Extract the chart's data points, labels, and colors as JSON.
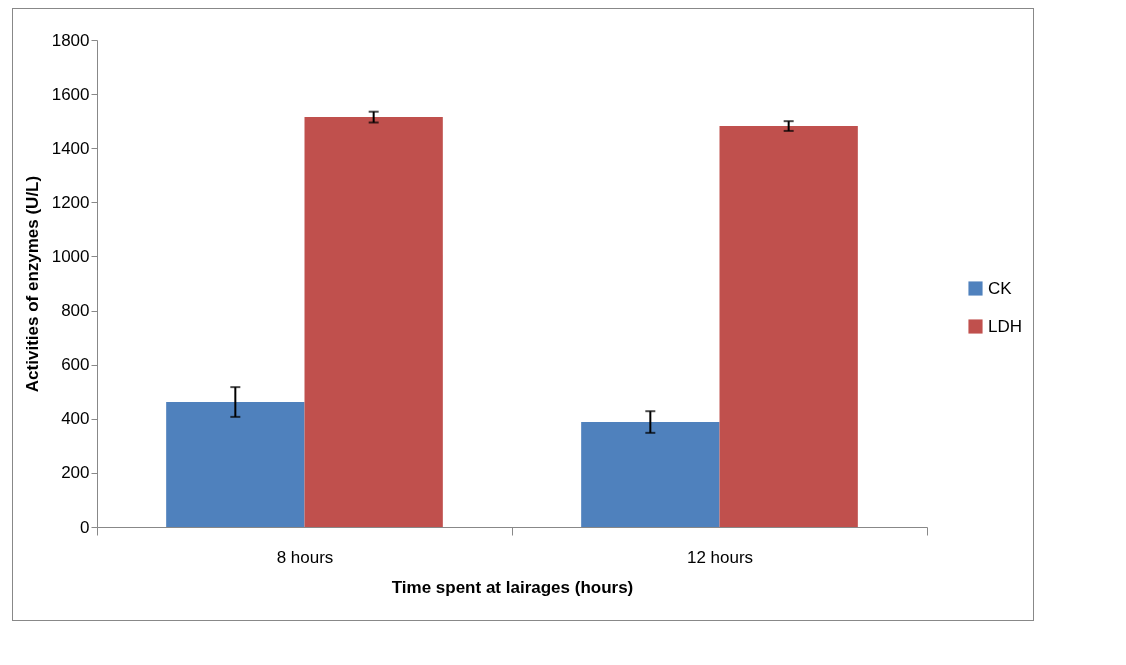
{
  "chart_data": {
    "type": "bar",
    "xlabel": "Time spent at lairages (hours)",
    "ylabel": "Activities of enzymes (U/L)",
    "categories": [
      "8 hours",
      "12  hours"
    ],
    "series": [
      {
        "name": "CK",
        "color": "#4f81bd",
        "values": [
          462,
          388
        ],
        "errors": [
          55,
          40
        ]
      },
      {
        "name": "LDH",
        "color": "#c0504d",
        "values": [
          1515,
          1482
        ],
        "errors": [
          20,
          18
        ]
      }
    ],
    "ylim": [
      0,
      1800
    ],
    "yticks": [
      0,
      200,
      400,
      600,
      800,
      1000,
      1200,
      1400,
      1600,
      1800
    ],
    "grid": false,
    "legend": "right"
  }
}
